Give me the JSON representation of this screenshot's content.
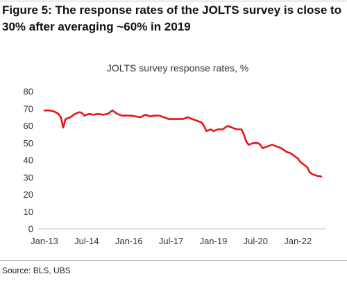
{
  "heading": "Figure 5: The response rates of the JOLTS survey is close to 30% after averaging ~60% in 2019",
  "source": "Source: BLS, UBS",
  "colors": {
    "line": "#e8131b",
    "axis": "#bfbfbf",
    "text": "#333333"
  },
  "chart_data": {
    "type": "line",
    "title": "JOLTS survey response rates, %",
    "xlabel": "",
    "ylabel": "",
    "ylim": [
      0,
      80
    ],
    "yticks": [
      0,
      10,
      20,
      30,
      40,
      50,
      60,
      70,
      80
    ],
    "x_range": [
      "2013-01",
      "2022-11"
    ],
    "xticks": [
      {
        "x": "2013-01",
        "label": "Jan-13"
      },
      {
        "x": "2014-07",
        "label": "Jul-14"
      },
      {
        "x": "2016-01",
        "label": "Jan-16"
      },
      {
        "x": "2017-07",
        "label": "Jul-17"
      },
      {
        "x": "2019-01",
        "label": "Jan-19"
      },
      {
        "x": "2020-07",
        "label": "Jul-20"
      },
      {
        "x": "2022-01",
        "label": "Jan-22"
      }
    ],
    "grid": false,
    "legend": "none",
    "series": [
      {
        "points": [
          [
            "2013-01",
            69
          ],
          [
            "2013-03",
            69
          ],
          [
            "2013-05",
            68.5
          ],
          [
            "2013-07",
            67
          ],
          [
            "2013-08",
            65
          ],
          [
            "2013-09",
            59
          ],
          [
            "2013-10",
            64
          ],
          [
            "2013-12",
            65
          ],
          [
            "2014-02",
            67
          ],
          [
            "2014-04",
            68
          ],
          [
            "2014-05",
            67.5
          ],
          [
            "2014-06",
            66
          ],
          [
            "2014-08",
            67
          ],
          [
            "2014-10",
            66.5
          ],
          [
            "2014-12",
            67
          ],
          [
            "2015-02",
            66.5
          ],
          [
            "2015-04",
            67
          ],
          [
            "2015-06",
            69
          ],
          [
            "2015-08",
            67
          ],
          [
            "2015-10",
            66
          ],
          [
            "2015-12",
            66
          ],
          [
            "2016-02",
            66
          ],
          [
            "2016-04",
            65.5
          ],
          [
            "2016-06",
            65
          ],
          [
            "2016-08",
            66.5
          ],
          [
            "2016-10",
            65.5
          ],
          [
            "2016-12",
            66
          ],
          [
            "2017-02",
            66
          ],
          [
            "2017-04",
            65
          ],
          [
            "2017-06",
            64
          ],
          [
            "2017-08",
            64
          ],
          [
            "2017-10",
            64
          ],
          [
            "2017-12",
            64
          ],
          [
            "2018-02",
            65
          ],
          [
            "2018-04",
            64
          ],
          [
            "2018-06",
            63
          ],
          [
            "2018-08",
            62
          ],
          [
            "2018-09",
            60
          ],
          [
            "2018-10",
            57
          ],
          [
            "2018-12",
            58
          ],
          [
            "2019-01",
            57
          ],
          [
            "2019-03",
            58
          ],
          [
            "2019-05",
            58
          ],
          [
            "2019-07",
            60
          ],
          [
            "2019-09",
            59
          ],
          [
            "2019-11",
            58
          ],
          [
            "2020-01",
            58
          ],
          [
            "2020-02",
            55
          ],
          [
            "2020-03",
            51
          ],
          [
            "2020-04",
            49
          ],
          [
            "2020-06",
            50
          ],
          [
            "2020-08",
            50
          ],
          [
            "2020-09",
            49
          ],
          [
            "2020-10",
            47
          ],
          [
            "2020-12",
            48
          ],
          [
            "2021-02",
            49
          ],
          [
            "2021-04",
            48
          ],
          [
            "2021-06",
            47
          ],
          [
            "2021-08",
            45
          ],
          [
            "2021-10",
            44
          ],
          [
            "2021-12",
            42
          ],
          [
            "2022-01",
            41
          ],
          [
            "2022-02",
            39
          ],
          [
            "2022-03",
            38
          ],
          [
            "2022-05",
            36
          ],
          [
            "2022-06",
            33
          ],
          [
            "2022-07",
            32
          ],
          [
            "2022-09",
            31
          ],
          [
            "2022-11",
            30.5
          ]
        ]
      }
    ]
  }
}
